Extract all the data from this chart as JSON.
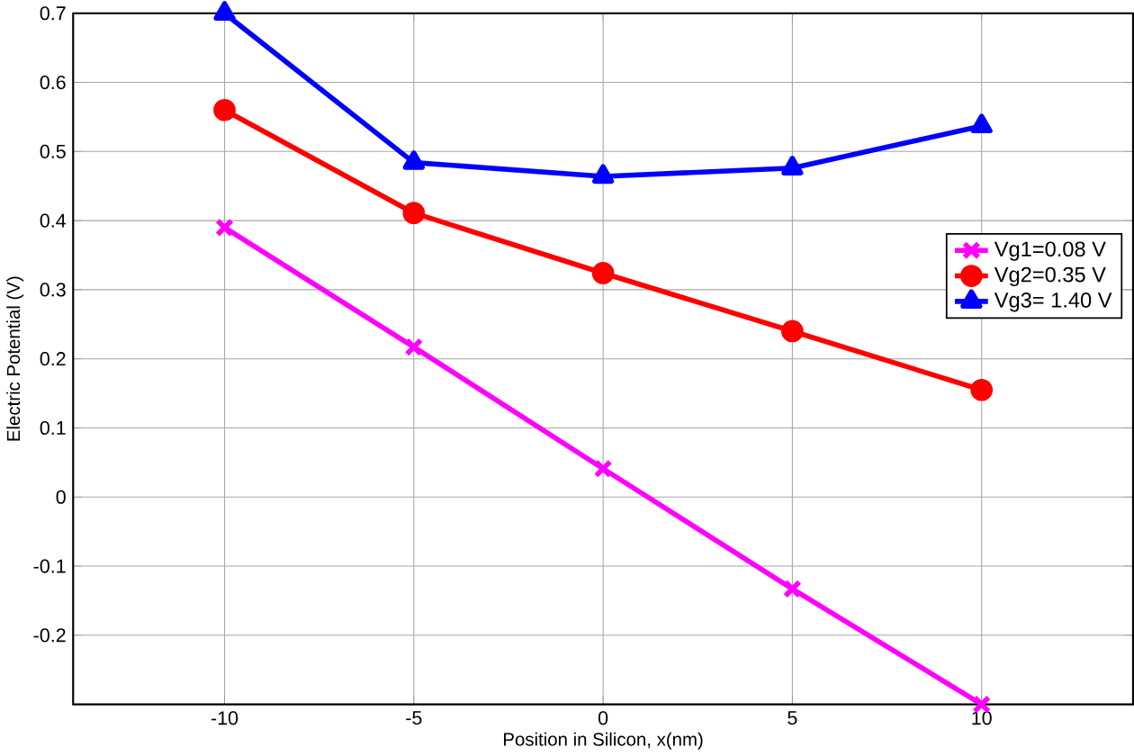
{
  "chart_data": {
    "type": "line",
    "xlabel": "Position in Silicon, x(nm)",
    "ylabel": "Electric Potential (V)",
    "x": [
      -10,
      -5,
      0,
      5,
      10
    ],
    "series": [
      {
        "name": "Vg1=0.08 V",
        "color": "#ff00ff",
        "marker": "cross",
        "values": [
          0.39,
          0.217,
          0.041,
          -0.133,
          -0.3
        ]
      },
      {
        "name": "Vg2=0.35 V",
        "color": "#ff0000",
        "marker": "circle",
        "values": [
          0.56,
          0.411,
          0.324,
          0.24,
          0.155
        ]
      },
      {
        "name": "Vg3= 1.40 V",
        "color": "#0000ff",
        "marker": "triangle",
        "values": [
          0.7,
          0.484,
          0.464,
          0.476,
          0.537
        ]
      }
    ],
    "xlim": [
      -14,
      14
    ],
    "xticks": [
      -10,
      -5,
      0,
      5,
      10
    ],
    "ylim": [
      -0.3,
      0.7
    ],
    "yticks": [
      -0.2,
      -0.1,
      0,
      0.1,
      0.2,
      0.3,
      0.4,
      0.5,
      0.6,
      0.7
    ],
    "grid": true,
    "legend": "right",
    "line_style": "solid"
  }
}
